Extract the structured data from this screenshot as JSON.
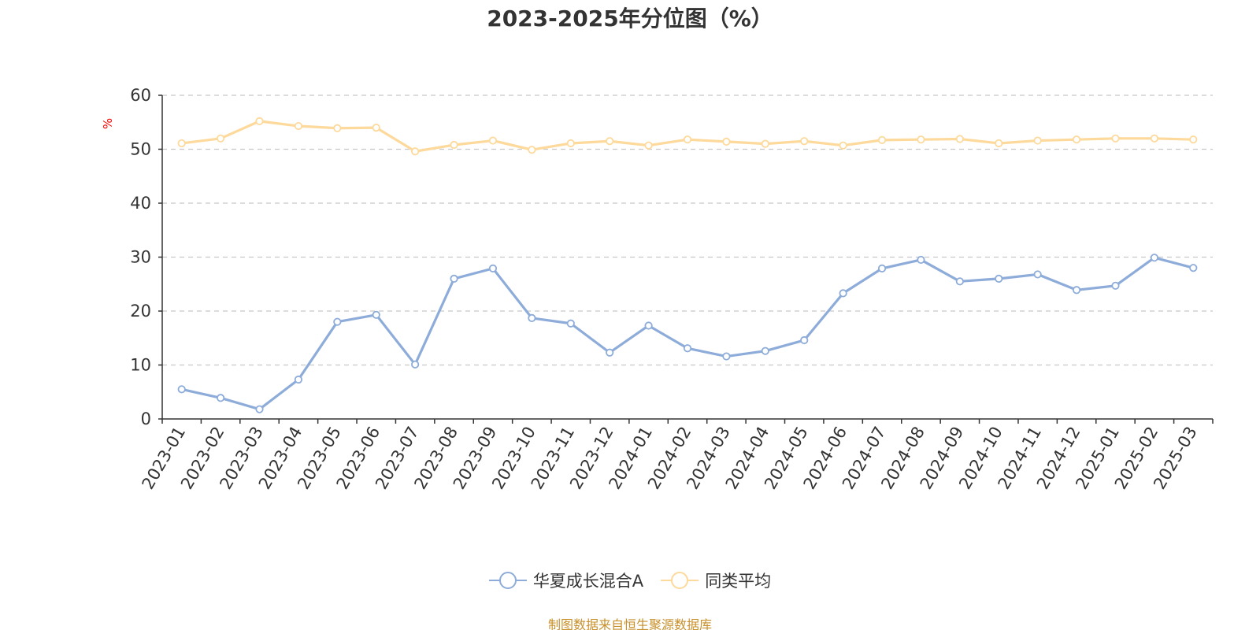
{
  "colors": {
    "series_primary": "#8eacd9",
    "series_average": "#fdd99b",
    "axis": "#333333",
    "grid": "#c8c8c8",
    "unit": "#ff0000",
    "source": "#c8902a"
  },
  "icons": {
    "legend_marker": "circle-line-icon"
  },
  "chart_data": {
    "type": "line",
    "title": "2023-2025年分位图（%）",
    "ylabel": "%",
    "xlabel": "",
    "ylim": [
      0,
      60
    ],
    "yticks": [
      0,
      10,
      20,
      30,
      40,
      50,
      60
    ],
    "grid": true,
    "legend_position": "bottom-center",
    "categories": [
      "2023-01",
      "2023-02",
      "2023-03",
      "2023-04",
      "2023-05",
      "2023-06",
      "2023-07",
      "2023-08",
      "2023-09",
      "2023-10",
      "2023-11",
      "2023-12",
      "2024-01",
      "2024-02",
      "2024-03",
      "2024-04",
      "2024-05",
      "2024-06",
      "2024-07",
      "2024-08",
      "2024-09",
      "2024-10",
      "2024-11",
      "2024-12",
      "2025-01",
      "2025-02",
      "2025-03"
    ],
    "series": [
      {
        "name": "华夏成长混合A",
        "values": [
          5.5,
          3.9,
          1.8,
          7.3,
          18.0,
          19.3,
          10.1,
          26.0,
          27.9,
          18.7,
          17.7,
          12.3,
          17.3,
          13.1,
          11.6,
          12.6,
          14.6,
          23.3,
          27.9,
          29.5,
          25.5,
          26.0,
          26.8,
          23.9,
          24.7,
          29.9,
          28.0
        ]
      },
      {
        "name": "同类平均",
        "values": [
          51.1,
          52.0,
          55.2,
          54.3,
          53.9,
          54.0,
          49.6,
          50.8,
          51.6,
          49.9,
          51.1,
          51.5,
          50.7,
          51.8,
          51.4,
          51.0,
          51.5,
          50.7,
          51.7,
          51.8,
          51.9,
          51.1,
          51.6,
          51.8,
          52.0,
          52.0,
          51.8
        ]
      }
    ]
  },
  "footer": {
    "source_text": "制图数据来自恒生聚源数据库"
  }
}
